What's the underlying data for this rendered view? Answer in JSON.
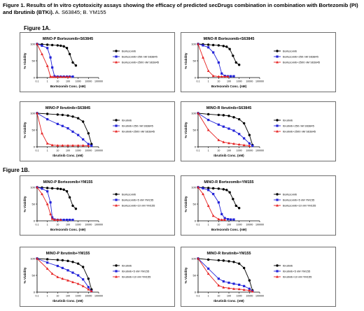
{
  "caption": {
    "bold": "Figure 1. Results of In vitro cytotoxicity assays showing the efficacy of predicted secDrugs combination in combination with Bortezomib (PI) and Ibrutinib (BTKi).",
    "rest": " A. S63845; B. YM155"
  },
  "figure_labels": [
    "Figure 1A.",
    "Figure 1B."
  ],
  "chart_data": [
    {
      "type": "line",
      "title": "MINO-P Bortezomib+S63845",
      "xlabel": "Bortezomib Conc. (nM)",
      "ylabel": "% Viability",
      "xscale": "log",
      "xticks": [
        "0.1",
        "1",
        "10",
        "100",
        "1000",
        "10000",
        "100000"
      ],
      "yticks": [
        "0",
        "50",
        "100"
      ],
      "ylim": [
        0,
        100
      ],
      "legend_position": "right",
      "series": [
        {
          "name": "Bortezomib",
          "color": "#000000",
          "marker": "circle",
          "x": [
            0.1,
            0.3,
            1,
            3,
            10,
            20,
            40,
            80,
            150,
            300,
            600
          ],
          "y": [
            100,
            99,
            98,
            97,
            96,
            95,
            93,
            88,
            70,
            45,
            36
          ]
        },
        {
          "name": "Bortezomib+250 nM S63845",
          "color": "#2323d8",
          "marker": "square",
          "x": [
            0.1,
            0.3,
            1,
            2,
            3,
            5,
            10,
            20,
            40,
            80,
            150,
            300
          ],
          "y": [
            100,
            95,
            88,
            60,
            30,
            4,
            3,
            3,
            3,
            3,
            3,
            3
          ]
        },
        {
          "name": "Bortezomib+2500 nM S63845",
          "color": "#e62020",
          "marker": "triangle",
          "x": [
            0.1,
            0.3,
            1,
            2,
            3,
            5,
            10,
            20,
            40,
            80,
            150
          ],
          "y": [
            100,
            70,
            35,
            3,
            2,
            2,
            2,
            2,
            2,
            2,
            2
          ]
        }
      ]
    },
    {
      "type": "line",
      "title": "MINO-R Bortezomib+S63845",
      "xlabel": "Bortezomib Conc. (nM)",
      "ylabel": "% Viability",
      "xscale": "log",
      "xticks": [
        "0.1",
        "1",
        "10",
        "100",
        "1000",
        "10000",
        "100000"
      ],
      "yticks": [
        "0",
        "50",
        "100"
      ],
      "ylim": [
        0,
        100
      ],
      "legend_position": "right",
      "series": [
        {
          "name": "Bortezomib",
          "color": "#000000",
          "marker": "circle",
          "x": [
            0.1,
            0.3,
            1,
            3,
            10,
            30,
            60,
            120,
            250,
            500,
            1000
          ],
          "y": [
            100,
            99,
            98,
            97,
            96,
            94,
            92,
            85,
            65,
            45,
            38
          ]
        },
        {
          "name": "Bortezomib+250 nM S63845",
          "color": "#2323d8",
          "marker": "square",
          "x": [
            0.1,
            0.3,
            1,
            3,
            10,
            20,
            40,
            80,
            150,
            300
          ],
          "y": [
            100,
            96,
            90,
            75,
            45,
            12,
            5,
            4,
            4,
            4
          ]
        },
        {
          "name": "Bortezomib+2500 nM S63845",
          "color": "#e62020",
          "marker": "triangle",
          "x": [
            0.1,
            0.3,
            1,
            3,
            10,
            20,
            40,
            80
          ],
          "y": [
            100,
            60,
            20,
            5,
            3,
            3,
            3,
            3
          ]
        }
      ]
    },
    {
      "type": "line",
      "title": "MINO-P Ibrutinib+S63845",
      "xlabel": "Ibrutinib Conc. (nM)",
      "ylabel": "% Viability",
      "xscale": "log",
      "xticks": [
        "0.1",
        "1",
        "10",
        "100",
        "1000",
        "10000",
        "100000"
      ],
      "yticks": [
        "0",
        "50",
        "100"
      ],
      "ylim": [
        0,
        100
      ],
      "legend_position": "right",
      "series": [
        {
          "name": "Ibrutinib",
          "color": "#000000",
          "marker": "circle",
          "x": [
            0.1,
            1,
            10,
            30,
            100,
            300,
            1000,
            3000,
            10000,
            20000
          ],
          "y": [
            100,
            98,
            96,
            95,
            93,
            90,
            85,
            75,
            40,
            8
          ]
        },
        {
          "name": "Ibrutinib+250 nM S63845",
          "color": "#2323d8",
          "marker": "square",
          "x": [
            0.1,
            1,
            10,
            30,
            100,
            300,
            1000,
            3000,
            10000,
            20000
          ],
          "y": [
            100,
            82,
            68,
            62,
            55,
            45,
            35,
            22,
            8,
            3
          ]
        },
        {
          "name": "Ibrutinib+2500 nM S63845",
          "color": "#e62020",
          "marker": "triangle",
          "x": [
            0.1,
            0.3,
            1,
            3,
            10,
            30,
            100,
            300,
            1000,
            3000,
            10000
          ],
          "y": [
            100,
            40,
            10,
            5,
            4,
            4,
            4,
            4,
            4,
            4,
            3
          ]
        }
      ]
    },
    {
      "type": "line",
      "title": "MINO-R Ibrutinib+S63845",
      "xlabel": "Ibrutinib Conc. (nM)",
      "ylabel": "% Viability",
      "xscale": "log",
      "xticks": [
        "0.1",
        "1",
        "10",
        "100",
        "1000",
        "10000",
        "100000"
      ],
      "yticks": [
        "0",
        "50",
        "100"
      ],
      "ylim": [
        0,
        100
      ],
      "legend_position": "right",
      "series": [
        {
          "name": "Ibrutinib",
          "color": "#000000",
          "marker": "circle",
          "x": [
            0.1,
            1,
            10,
            30,
            100,
            300,
            1000,
            3000,
            10000,
            20000
          ],
          "y": [
            100,
            97,
            95,
            94,
            92,
            88,
            82,
            70,
            35,
            5
          ]
        },
        {
          "name": "Ibrutinib+250 nM S63845",
          "color": "#2323d8",
          "marker": "square",
          "x": [
            0.1,
            1,
            10,
            30,
            100,
            300,
            1000,
            3000,
            10000,
            20000
          ],
          "y": [
            100,
            80,
            66,
            60,
            54,
            48,
            38,
            25,
            10,
            3
          ]
        },
        {
          "name": "Ibrutinib+2500 nM S63845",
          "color": "#e62020",
          "marker": "triangle",
          "x": [
            0.1,
            1,
            10,
            30,
            100,
            300,
            1000,
            3000,
            10000
          ],
          "y": [
            100,
            50,
            20,
            14,
            11,
            9,
            7,
            5,
            3
          ]
        }
      ]
    },
    {
      "type": "line",
      "title": "MINO-P Bortezomib+YM155",
      "xlabel": "Bortezomib Conc. (nM)",
      "ylabel": "% Viability",
      "xscale": "log",
      "xticks": [
        "0.1",
        "1",
        "10",
        "100",
        "1000",
        "10000",
        "100000"
      ],
      "yticks": [
        "0",
        "50",
        "100"
      ],
      "ylim": [
        0,
        100
      ],
      "legend_position": "right",
      "series": [
        {
          "name": "Bortezomib",
          "color": "#000000",
          "marker": "circle",
          "x": [
            0.1,
            0.3,
            1,
            3,
            10,
            20,
            40,
            80,
            150,
            300,
            600
          ],
          "y": [
            100,
            99,
            98,
            97,
            96,
            95,
            93,
            88,
            70,
            45,
            36
          ]
        },
        {
          "name": "Bortezomib+5 nM YM155",
          "color": "#2323d8",
          "marker": "square",
          "x": [
            0.1,
            0.3,
            1,
            2,
            3,
            5,
            10,
            20,
            40,
            80,
            150,
            300
          ],
          "y": [
            100,
            96,
            88,
            55,
            10,
            4,
            3,
            3,
            3,
            3,
            3,
            3
          ]
        },
        {
          "name": "Bortezomib+10 nM YM155",
          "color": "#e62020",
          "marker": "triangle",
          "x": [
            0.1,
            0.3,
            1,
            2,
            3,
            5,
            10,
            20
          ],
          "y": [
            100,
            80,
            50,
            20,
            6,
            3,
            3,
            3
          ]
        }
      ]
    },
    {
      "type": "line",
      "title": "MINO-R Bortezomib+YM155",
      "xlabel": "Bortezomib Conc. (nM)",
      "ylabel": "% Viability",
      "xscale": "log",
      "xticks": [
        "0.1",
        "1",
        "10",
        "100",
        "1000",
        "10000",
        "100000"
      ],
      "yticks": [
        "0",
        "50",
        "100"
      ],
      "ylim": [
        0,
        100
      ],
      "legend_position": "right",
      "series": [
        {
          "name": "Bortezomib",
          "color": "#000000",
          "marker": "circle",
          "x": [
            0.1,
            0.3,
            1,
            3,
            10,
            30,
            60,
            120,
            250,
            500,
            1000
          ],
          "y": [
            100,
            99,
            98,
            97,
            96,
            94,
            92,
            85,
            65,
            45,
            38
          ]
        },
        {
          "name": "Bortezomib+5 nM YM155",
          "color": "#2323d8",
          "marker": "square",
          "x": [
            0.1,
            0.3,
            1,
            3,
            10,
            20,
            40,
            80,
            150,
            300
          ],
          "y": [
            100,
            97,
            92,
            80,
            55,
            20,
            8,
            5,
            4,
            4
          ]
        },
        {
          "name": "Bortezomib+10 nM YM155",
          "color": "#e62020",
          "marker": "triangle",
          "x": [
            0.1,
            0.3,
            1,
            3,
            10,
            20,
            40
          ],
          "y": [
            100,
            80,
            45,
            15,
            5,
            3,
            3
          ]
        }
      ]
    },
    {
      "type": "line",
      "title": "MINO-P Ibrutinib+YM155",
      "xlabel": "Ibrutinib Conc. (nM)",
      "ylabel": "% Viability",
      "xscale": "log",
      "xticks": [
        "0.1",
        "1",
        "10",
        "100",
        "1000",
        "10000",
        "100000"
      ],
      "yticks": [
        "0",
        "50",
        "100"
      ],
      "ylim": [
        0,
        100
      ],
      "legend_position": "right",
      "series": [
        {
          "name": "Ibrutinib",
          "color": "#000000",
          "marker": "circle",
          "x": [
            0.1,
            1,
            10,
            30,
            100,
            300,
            1000,
            3000,
            10000,
            20000
          ],
          "y": [
            100,
            98,
            96,
            95,
            93,
            90,
            85,
            75,
            40,
            8
          ]
        },
        {
          "name": "Ibrutinib+5 nM YM155",
          "color": "#2323d8",
          "marker": "square",
          "x": [
            0.1,
            1,
            10,
            30,
            100,
            300,
            1000,
            3000,
            10000,
            20000
          ],
          "y": [
            100,
            88,
            78,
            72,
            65,
            58,
            50,
            38,
            15,
            3
          ]
        },
        {
          "name": "Ibrutinib+10 nM YM155",
          "color": "#e62020",
          "marker": "triangle",
          "x": [
            0.1,
            1,
            3,
            10,
            30,
            100,
            300,
            1000,
            3000,
            10000,
            20000
          ],
          "y": [
            100,
            70,
            55,
            45,
            40,
            35,
            30,
            25,
            18,
            8,
            3
          ]
        }
      ]
    },
    {
      "type": "line",
      "title": "MINO-R Ibrutinib+YM155",
      "xlabel": "Ibrutinib Conc. (nM)",
      "ylabel": "% Viability",
      "xscale": "log",
      "xticks": [
        "0.1",
        "1",
        "10",
        "100",
        "1000",
        "10000",
        "100000"
      ],
      "yticks": [
        "0",
        "50",
        "100"
      ],
      "ylim": [
        0,
        100
      ],
      "legend_position": "right",
      "series": [
        {
          "name": "Ibrutinib",
          "color": "#000000",
          "marker": "circle",
          "x": [
            0.1,
            1,
            10,
            30,
            100,
            300,
            1000,
            3000,
            10000,
            20000
          ],
          "y": [
            100,
            97,
            95,
            94,
            92,
            90,
            85,
            72,
            35,
            5
          ]
        },
        {
          "name": "Ibrutinib+5 nM YM155",
          "color": "#2323d8",
          "marker": "square",
          "x": [
            0.1,
            1,
            10,
            30,
            100,
            300,
            1000,
            3000,
            10000,
            20000
          ],
          "y": [
            100,
            70,
            40,
            32,
            28,
            25,
            22,
            18,
            10,
            3
          ]
        },
        {
          "name": "Ibrutinib+10 nM YM155",
          "color": "#e62020",
          "marker": "triangle",
          "x": [
            0.1,
            1,
            10,
            30,
            100,
            300,
            1000,
            3000,
            10000,
            20000
          ],
          "y": [
            100,
            55,
            20,
            14,
            12,
            10,
            9,
            7,
            5,
            2
          ]
        }
      ]
    }
  ]
}
